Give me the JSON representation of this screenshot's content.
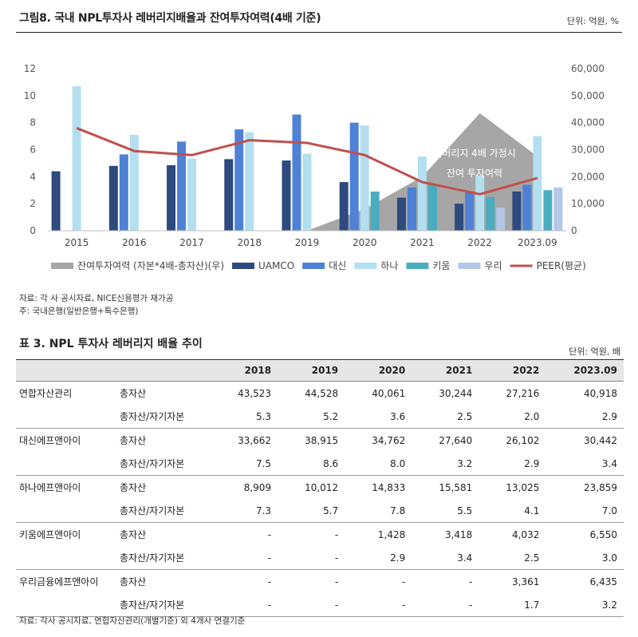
{
  "figure": {
    "title": "그림8. 국내 NPL투자사 레버리지배율과 잔여투자여력(4배 기준)",
    "unit": "단위: 억원, %",
    "annotation_line1": "레버리지 4배 가정시",
    "annotation_line2": "잔여 투자여력",
    "source": "자료: 각 사 공시자료, NICE신용평가 재가공",
    "note": "주: 국내은행(일반은행+특수은행)"
  },
  "chart_data": {
    "type": "bar",
    "categories": [
      "2015",
      "2016",
      "2017",
      "2018",
      "2019",
      "2020",
      "2021",
      "2022",
      "2023.09"
    ],
    "y_left": {
      "min": 0,
      "max": 12,
      "ticks": [
        0,
        2,
        4,
        6,
        8,
        10,
        12
      ]
    },
    "y_right": {
      "min": 0,
      "max": 60000,
      "ticks": [
        "0",
        "10,000",
        "20,000",
        "30,000",
        "40,000",
        "50,000",
        "60,000"
      ]
    },
    "series": [
      {
        "name": "잔여투자여력 (자본*4배-총자산)(우)",
        "type": "area",
        "axis": "right",
        "color": "#a6a6a6",
        "values": [
          null,
          null,
          null,
          null,
          0,
          8000,
          20000,
          43500,
          27500
        ]
      },
      {
        "name": "UAMCO",
        "type": "bar",
        "axis": "left",
        "color": "#2e4a7e",
        "values": [
          4.4,
          4.8,
          4.85,
          5.3,
          5.2,
          3.6,
          2.45,
          2.0,
          2.9
        ]
      },
      {
        "name": "대신",
        "type": "bar",
        "axis": "left",
        "color": "#4f81d6",
        "values": [
          null,
          5.65,
          6.6,
          7.5,
          8.6,
          8.0,
          3.2,
          2.9,
          3.4
        ]
      },
      {
        "name": "하나",
        "type": "bar",
        "axis": "left",
        "color": "#b3dff0",
        "values": [
          10.7,
          7.1,
          5.35,
          7.3,
          5.7,
          7.8,
          5.5,
          4.1,
          7.0
        ]
      },
      {
        "name": "키움",
        "type": "bar",
        "axis": "left",
        "color": "#4aadbf",
        "values": [
          null,
          null,
          null,
          null,
          null,
          2.9,
          3.4,
          2.5,
          3.0
        ]
      },
      {
        "name": "우리",
        "type": "bar",
        "axis": "left",
        "color": "#b4c7e7",
        "values": [
          null,
          null,
          null,
          null,
          null,
          null,
          null,
          1.7,
          3.2
        ]
      },
      {
        "name": "PEER(평균)",
        "type": "line",
        "axis": "left",
        "color": "#c0504d",
        "values": [
          7.6,
          5.9,
          5.6,
          6.7,
          6.5,
          5.6,
          3.6,
          2.7,
          3.9
        ]
      }
    ]
  },
  "table": {
    "title": "표 3. NPL 투자사 레버리지 배율 추이",
    "unit": "단위: 억원, 배",
    "years": [
      "2018",
      "2019",
      "2020",
      "2021",
      "2022",
      "2023.09"
    ],
    "rows": [
      {
        "company": "연합자산관리",
        "metric": "총자산",
        "values": [
          "43,523",
          "44,528",
          "40,061",
          "30,244",
          "27,216",
          "40,918"
        ]
      },
      {
        "company": "",
        "metric": "총자산/자기자본",
        "values": [
          "5.3",
          "5.2",
          "3.6",
          "2.5",
          "2.0",
          "2.9"
        ]
      },
      {
        "company": "대신에프앤아이",
        "metric": "총자산",
        "values": [
          "33,662",
          "38,915",
          "34,762",
          "27,640",
          "26,102",
          "30,442"
        ]
      },
      {
        "company": "",
        "metric": "총자산/자기자본",
        "values": [
          "7.5",
          "8.6",
          "8.0",
          "3.2",
          "2.9",
          "3.4"
        ]
      },
      {
        "company": "하나에프앤아이",
        "metric": "총자산",
        "values": [
          "8,909",
          "10,012",
          "14,833",
          "15,581",
          "13,025",
          "23,859"
        ]
      },
      {
        "company": "",
        "metric": "총자산/자기자본",
        "values": [
          "7.3",
          "5.7",
          "7.8",
          "5.5",
          "4.1",
          "7.0"
        ]
      },
      {
        "company": "키움에프앤아이",
        "metric": "총자산",
        "values": [
          "-",
          "-",
          "1,428",
          "3,418",
          "4,032",
          "6,550"
        ]
      },
      {
        "company": "",
        "metric": "총자산/자기자본",
        "values": [
          "-",
          "-",
          "2.9",
          "3.4",
          "2.5",
          "3.0"
        ]
      },
      {
        "company": "우리금융에프앤아이",
        "metric": "총자산",
        "values": [
          "-",
          "-",
          "-",
          "-",
          "3,361",
          "6,435"
        ]
      },
      {
        "company": "",
        "metric": "총자산/자기자본",
        "values": [
          "-",
          "-",
          "-",
          "-",
          "1.7",
          "3.2"
        ]
      }
    ],
    "source": "자료: 각사 공시자료, 연합자산관리(개별기준) 외 4개사 연결기준"
  }
}
